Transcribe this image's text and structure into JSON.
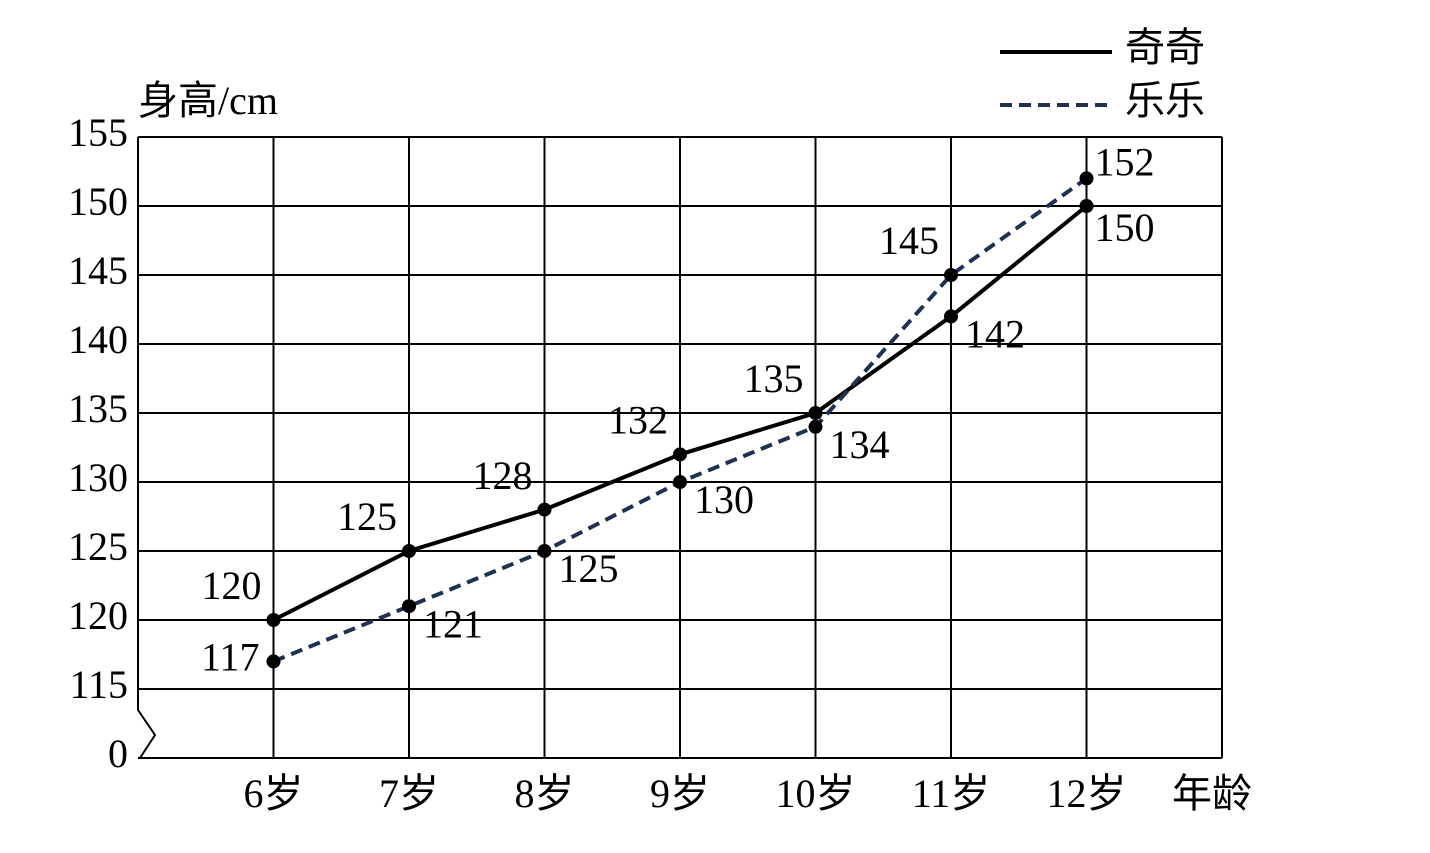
{
  "chart_data": {
    "type": "line",
    "y_label": "身高/cm",
    "x_label": "年龄",
    "categories": [
      "6岁",
      "7岁",
      "8岁",
      "9岁",
      "10岁",
      "11岁",
      "12岁"
    ],
    "series": [
      {
        "name": "奇奇",
        "color": "#000000",
        "line_style": "solid",
        "values": [
          120,
          125,
          128,
          132,
          135,
          142,
          150
        ]
      },
      {
        "name": "乐乐",
        "color": "#1f3050",
        "line_style": "dashed",
        "values": [
          117,
          121,
          125,
          130,
          134,
          145,
          152
        ]
      }
    ],
    "ylim": [
      0,
      155
    ],
    "y_break": 115,
    "yticks": [
      0,
      115,
      120,
      125,
      130,
      135,
      140,
      145,
      150,
      155
    ],
    "grid": true,
    "legend": "top-right"
  }
}
